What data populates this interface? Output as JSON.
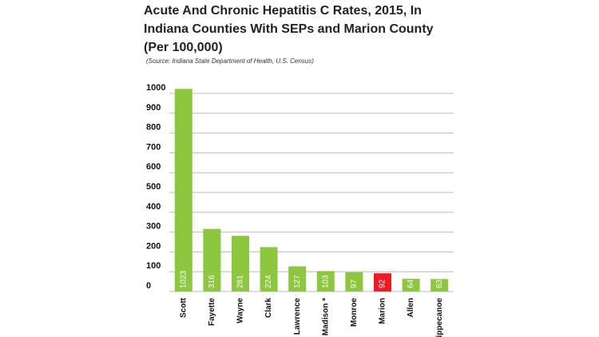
{
  "chart_data": {
    "type": "bar",
    "title": "Acute And Chronic Hepatitis C Rates, 2015, In Indiana Counties With SEPs and Marion County (Per 100,000)",
    "source": "(Source: Indiana State Department of Health, U.S. Census)",
    "categories": [
      "Scott",
      "Fayette",
      "Wayne",
      "Clark",
      "Lawrence",
      "Madison *",
      "Monroe",
      "Marion",
      "Allen",
      "Tippecanoe"
    ],
    "values": [
      1023,
      316,
      281,
      224,
      127,
      103,
      97,
      92,
      64,
      63
    ],
    "yticks": [
      0,
      100,
      200,
      300,
      400,
      500,
      600,
      700,
      800,
      900,
      1000
    ],
    "ylim": [
      0,
      1050
    ],
    "grid": true,
    "colors": {
      "default": "#8dc63f",
      "highlight": "#ed1c24",
      "highlight_category": "Marion",
      "grid": "#bbbbbb"
    }
  }
}
